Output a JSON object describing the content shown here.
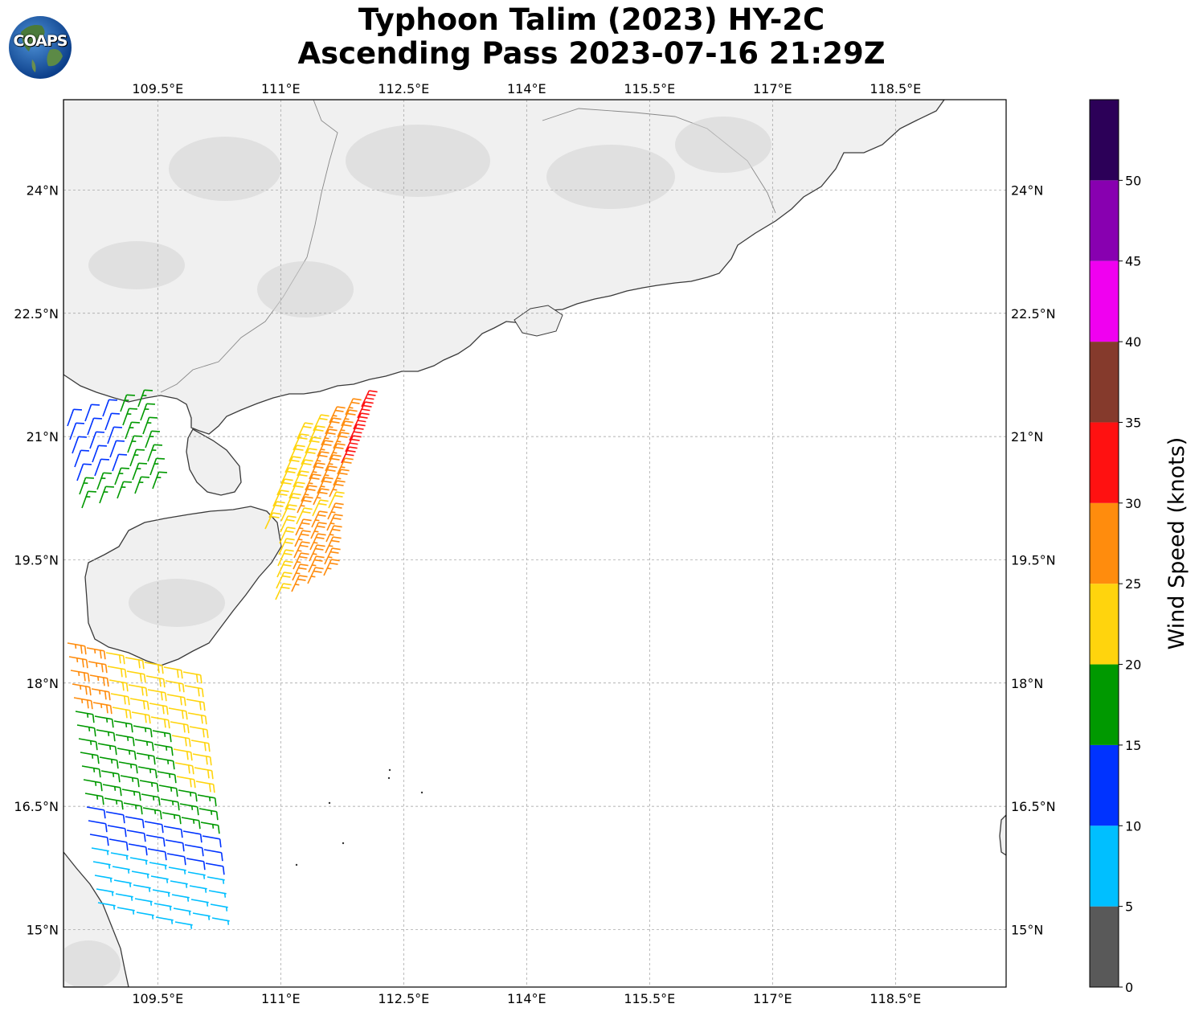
{
  "title": {
    "line1": "Typhoon Talim (2023) HY-2C",
    "line2": "Ascending Pass 2023-07-16 21:29Z"
  },
  "logo": {
    "text": "COAPS",
    "icon": "globe-icon"
  },
  "map": {
    "lon_range": [
      108.35,
      119.85
    ],
    "lat_range": [
      14.3,
      25.1
    ],
    "lon_ticks": [
      "109.5°E",
      "111°E",
      "112.5°E",
      "114°E",
      "115.5°E",
      "117°E",
      "118.5°E"
    ],
    "lat_ticks": [
      "24°N",
      "22.5°N",
      "21°N",
      "19.5°N",
      "18°N",
      "16.5°N",
      "15°N"
    ],
    "grid": true,
    "coastline_color": "#333333"
  },
  "colorbar": {
    "label": "Wind Speed (knots)",
    "ticks": [
      "0",
      "5",
      "10",
      "15",
      "20",
      "25",
      "30",
      "35",
      "40",
      "45",
      "50"
    ],
    "colors": [
      "#595959",
      "#00bfff",
      "#0033ff",
      "#009900",
      "#ffd40d",
      "#ff8c0d",
      "#ff1111",
      "#853a2c",
      "#f000f0",
      "#8800b0",
      "#2c0058"
    ],
    "max": 55
  },
  "wind_swaths": [
    {
      "region": "northwest",
      "color": "#0033ff",
      "speed_knots": 12
    },
    {
      "region": "northwest-edge",
      "color": "#009900",
      "speed_knots": 17
    },
    {
      "region": "coastal-east",
      "color": "#ffd40d",
      "speed_knots": 22
    },
    {
      "region": "coastal-east",
      "color": "#ff8c0d",
      "speed_knots": 27
    },
    {
      "region": "coastal-east",
      "color": "#ff1111",
      "speed_knots": 32
    },
    {
      "region": "south",
      "color": "#009900",
      "speed_knots": 17
    },
    {
      "region": "south",
      "color": "#00bfff",
      "speed_knots": 7
    }
  ]
}
